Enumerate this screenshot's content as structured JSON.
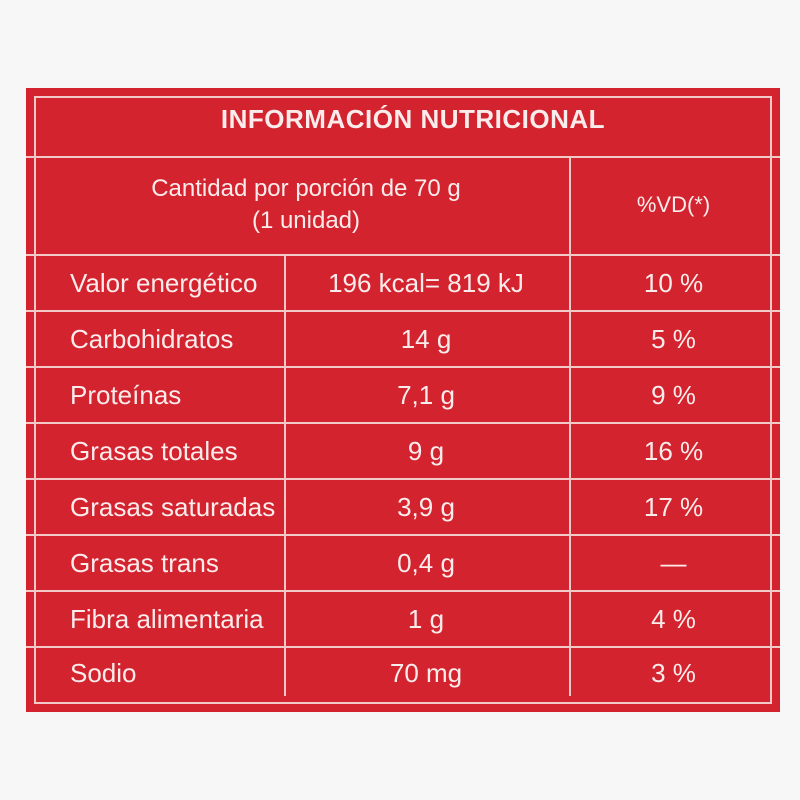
{
  "title": "INFORMACIÓN NUTRICIONAL",
  "header": {
    "serving_line1": "Cantidad por porción de 70 g",
    "serving_line2": "(1 unidad)",
    "vd_label": "%VD(*)"
  },
  "rows": [
    {
      "name": "Valor energético",
      "amount": "196 kcal= 819 kJ",
      "vd": "10 %"
    },
    {
      "name": "Carbohidratos",
      "amount": "14 g",
      "vd": "5 %"
    },
    {
      "name": "Proteínas",
      "amount": "7,1 g",
      "vd": "9 %"
    },
    {
      "name": "Grasas totales",
      "amount": "9 g",
      "vd": "16 %"
    },
    {
      "name": "Grasas saturadas",
      "amount": "3,9 g",
      "vd": "17 %"
    },
    {
      "name": "Grasas trans",
      "amount": "0,4 g",
      "vd": "—"
    },
    {
      "name": "Fibra alimentaria",
      "amount": "1 g",
      "vd": "4 %"
    },
    {
      "name": "Sodio",
      "amount": "70 mg",
      "vd": "3 %"
    }
  ],
  "colors": {
    "background": "#d3232f",
    "text": "#fbecec",
    "lines": "#f1c9c9"
  }
}
